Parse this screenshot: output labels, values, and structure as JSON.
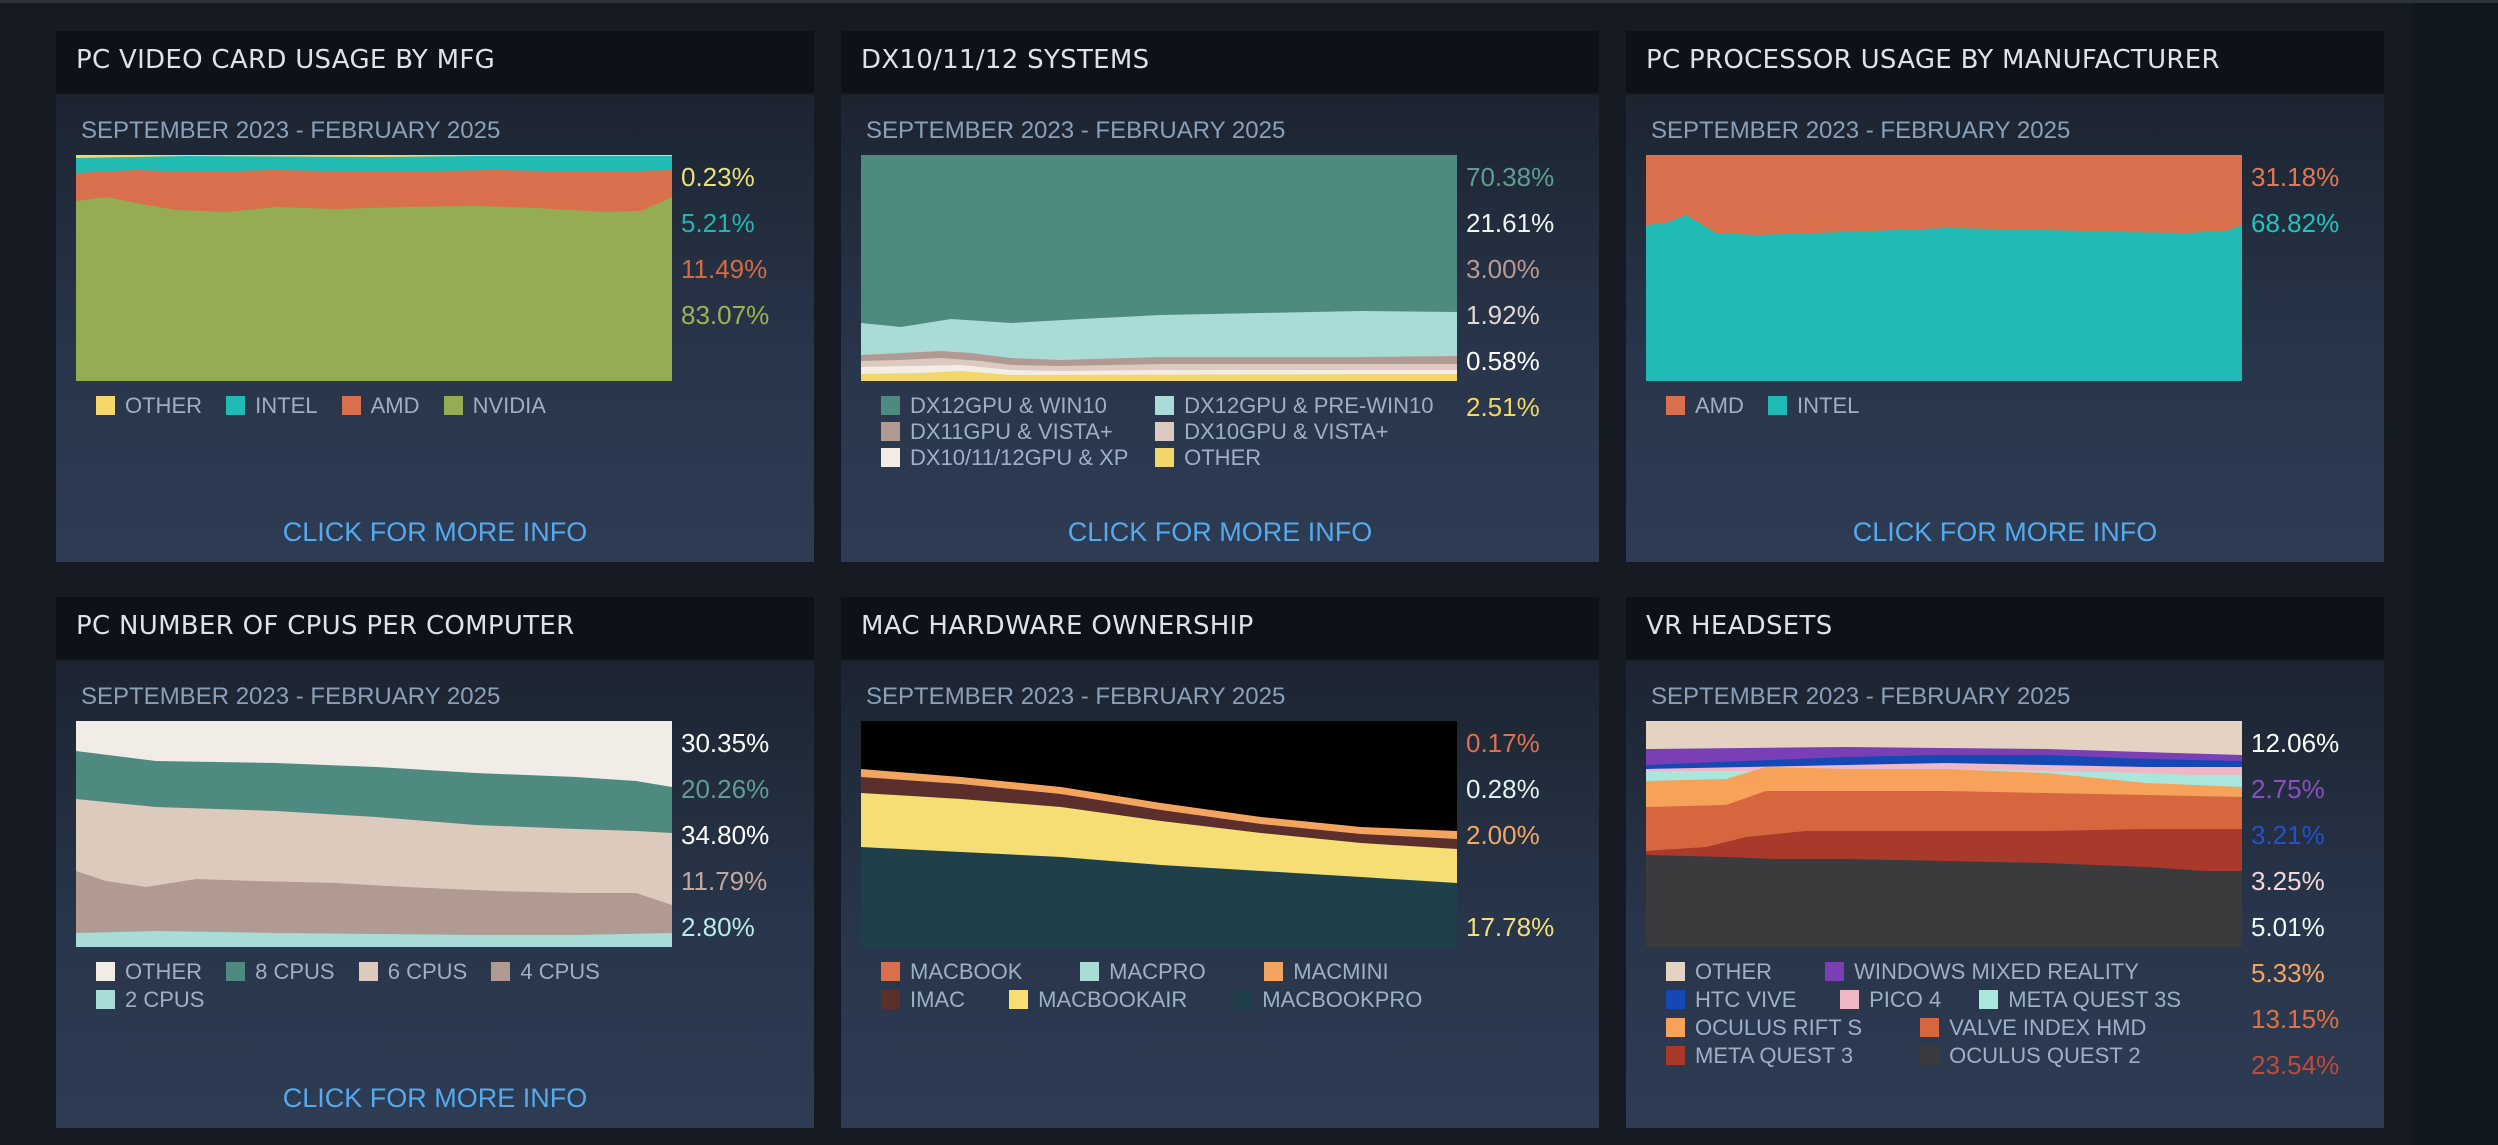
{
  "panels": [
    {
      "title": "PC VIDEO CARD USAGE BY MFG",
      "date_range": "SEPTEMBER 2023 - FEBRUARY 2025",
      "percentages": [
        {
          "label": "0.23%",
          "color": "#ece07a"
        },
        {
          "label": "5.21%",
          "color": "#22b6b0"
        },
        {
          "label": "11.49%",
          "color": "#d66a45"
        },
        {
          "label": "83.07%",
          "color": "#9cb44e"
        }
      ],
      "legend": [
        [
          {
            "label": "OTHER",
            "color": "#f5d76b"
          },
          {
            "label": "INTEL",
            "color": "#1fbbb4"
          },
          {
            "label": "AMD",
            "color": "#d96f4c"
          },
          {
            "label": "NVIDIA",
            "color": "#94ad52"
          }
        ]
      ],
      "more_link": "CLICK FOR MORE INFO"
    },
    {
      "title": "DX10/11/12 SYSTEMS",
      "date_range": "SEPTEMBER 2023 - FEBRUARY 2025",
      "percentages": [
        {
          "label": "70.38%",
          "color": "#5f9e90"
        },
        {
          "label": "21.61%",
          "color": "#eef6f4"
        },
        {
          "label": "3.00%",
          "color": "#b89a90"
        },
        {
          "label": "1.92%",
          "color": "#e2d8d2"
        },
        {
          "label": "0.58%",
          "color": "#ffffff"
        },
        {
          "label": "2.51%",
          "color": "#f0d868"
        }
      ],
      "legend": [
        [
          {
            "label": "DX12GPU & WIN10",
            "color": "#4f8a80"
          },
          {
            "label": "DX12GPU & PRE-WIN10",
            "color": "#a9dcd6"
          }
        ],
        [
          {
            "label": "DX11GPU & VISTA+",
            "color": "#b19a92"
          },
          {
            "label": "DX10GPU & VISTA+",
            "color": "#dcc9bf"
          }
        ],
        [
          {
            "label": "DX10/11/12GPU & XP",
            "color": "#f3ede6"
          },
          {
            "label": "OTHER",
            "color": "#f2d66b"
          }
        ]
      ],
      "more_link": "CLICK FOR MORE INFO"
    },
    {
      "title": "PC PROCESSOR USAGE BY MANUFACTURER",
      "date_range": "SEPTEMBER 2023 - FEBRUARY 2025",
      "percentages": [
        {
          "label": "31.18%",
          "color": "#e07a55"
        },
        {
          "label": "68.82%",
          "color": "#20c4bc"
        }
      ],
      "legend": [
        [
          {
            "label": "AMD",
            "color": "#d96f4c"
          },
          {
            "label": "INTEL",
            "color": "#1fbbb4"
          }
        ]
      ],
      "more_link": "CLICK FOR MORE INFO"
    },
    {
      "title": "PC NUMBER OF CPUS PER COMPUTER",
      "date_range": "SEPTEMBER 2023 - FEBRUARY 2025",
      "percentages": [
        {
          "label": "30.35%",
          "color": "#ffffff"
        },
        {
          "label": "20.26%",
          "color": "#5f9e90"
        },
        {
          "label": "34.80%",
          "color": "#ffffff"
        },
        {
          "label": "11.79%",
          "color": "#c4a89e"
        },
        {
          "label": "2.80%",
          "color": "#b8ece6"
        }
      ],
      "legend": [
        [
          {
            "label": "OTHER",
            "color": "#f2ece6"
          },
          {
            "label": "8 CPUS",
            "color": "#4f8a80"
          },
          {
            "label": "6 CPUS",
            "color": "#dccabd"
          },
          {
            "label": "4 CPUS",
            "color": "#b19a92"
          }
        ],
        [
          {
            "label": "2 CPUS",
            "color": "#a9dcd6"
          }
        ]
      ],
      "more_link": "CLICK FOR MORE INFO"
    },
    {
      "title": "MAC HARDWARE OWNERSHIP",
      "date_range": "SEPTEMBER 2023 - FEBRUARY 2025",
      "percentages": [
        {
          "label": "0.17%",
          "color": "#e07050"
        },
        {
          "label": "0.28%",
          "color": "#dff4f1"
        },
        {
          "label": "2.00%",
          "color": "#f4a863"
        },
        {
          "label": "",
          "color": "#6a3535"
        },
        {
          "label": "17.78%",
          "color": "#f3df76"
        },
        {
          "label": "",
          "color": "#1c3a44"
        }
      ],
      "legend": [
        [
          {
            "label": "MACBOOK",
            "color": "#d96f4c"
          },
          {
            "label": "MACPRO",
            "color": "#a9dcd6"
          },
          {
            "label": "MACMINI",
            "color": "#f3a560"
          }
        ],
        [
          {
            "label": "IMAC",
            "color": "#5c2f2c"
          },
          {
            "label": "MACBOOKAIR",
            "color": "#f6de74"
          },
          {
            "label": "MACBOOKPRO",
            "color": "#1f4048"
          }
        ]
      ],
      "more_link": ""
    },
    {
      "title": "VR HEADSETS",
      "date_range": "SEPTEMBER 2023 - FEBRUARY 2025",
      "percentages": [
        {
          "label": "12.06%",
          "color": "#ffffff"
        },
        {
          "label": "2.75%",
          "color": "#8a4fc0"
        },
        {
          "label": "3.21%",
          "color": "#2450c8"
        },
        {
          "label": "3.25%",
          "color": "#f2d8dc"
        },
        {
          "label": "5.01%",
          "color": "#e8fbf8"
        },
        {
          "label": "5.33%",
          "color": "#f6a55e"
        },
        {
          "label": "13.15%",
          "color": "#e07040"
        },
        {
          "label": "23.54%",
          "color": "#c04a38"
        }
      ],
      "legend": [
        [
          {
            "label": "OTHER",
            "color": "#e4d3c3"
          },
          {
            "label": "WINDOWS MIXED REALITY",
            "color": "#7a3fb5"
          }
        ],
        [
          {
            "label": "HTC VIVE",
            "color": "#1348b5"
          },
          {
            "label": "PICO 4",
            "color": "#f0b8c4"
          },
          {
            "label": "META QUEST 3S",
            "color": "#a9e6dc"
          }
        ],
        [
          {
            "label": "OCULUS RIFT S",
            "color": "#f7a25a"
          },
          {
            "label": "VALVE INDEX HMD",
            "color": "#d6663e"
          }
        ],
        [
          {
            "label": "META QUEST 3",
            "color": "#a8392b"
          },
          {
            "label": "OCULUS QUEST 2",
            "color": "#3b3b3e"
          }
        ]
      ],
      "more_link": ""
    }
  ]
}
